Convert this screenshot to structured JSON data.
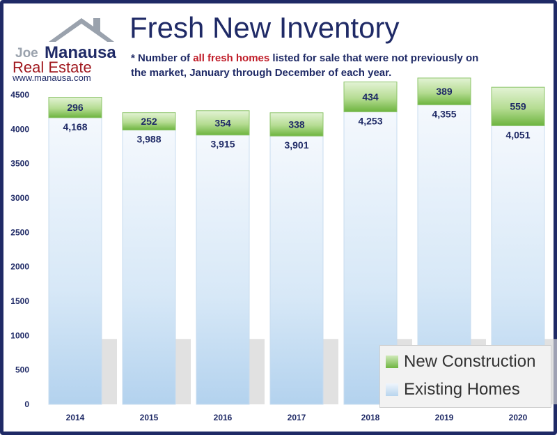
{
  "title": "Fresh New Inventory",
  "note": {
    "prefix": "* Number of ",
    "highlight": "all fresh homes",
    "suffix": " listed for sale that were not previously on the market, January through December of each year."
  },
  "logo": {
    "joe": "Joe",
    "manausa": "Manausa",
    "real_estate": "Real Estate",
    "url": "www.manausa.com"
  },
  "legend": {
    "new_construction": "New Construction",
    "existing_homes": "Existing Homes"
  },
  "colors": {
    "brand_navy": "#1f2a66",
    "highlight_red": "#c01c28",
    "existing_light": "#eef5fc",
    "existing_dark": "#b8d5ee",
    "new_light": "#cfe9b8",
    "new_dark": "#6fb542"
  },
  "chart_data": {
    "type": "bar",
    "stacked": true,
    "categories": [
      "2014",
      "2015",
      "2016",
      "2017",
      "2018",
      "2019",
      "2020"
    ],
    "series": [
      {
        "name": "Existing Homes",
        "values": [
          4168,
          3988,
          3915,
          3901,
          4253,
          4355,
          4051
        ],
        "labels": [
          "4,168",
          "3,988",
          "3,915",
          "3,901",
          "4,253",
          "4,355",
          "4,051"
        ]
      },
      {
        "name": "New Construction",
        "values": [
          296,
          252,
          354,
          338,
          434,
          389,
          559
        ],
        "labels": [
          "296",
          "252",
          "354",
          "338",
          "434",
          "389",
          "559"
        ]
      }
    ],
    "y_ticks": [
      "0",
      "500",
      "1000",
      "1500",
      "2000",
      "2500",
      "3000",
      "3500",
      "4000",
      "4500"
    ],
    "ylim": [
      0,
      4750
    ],
    "grid": false,
    "legend_position": "bottom-right"
  }
}
